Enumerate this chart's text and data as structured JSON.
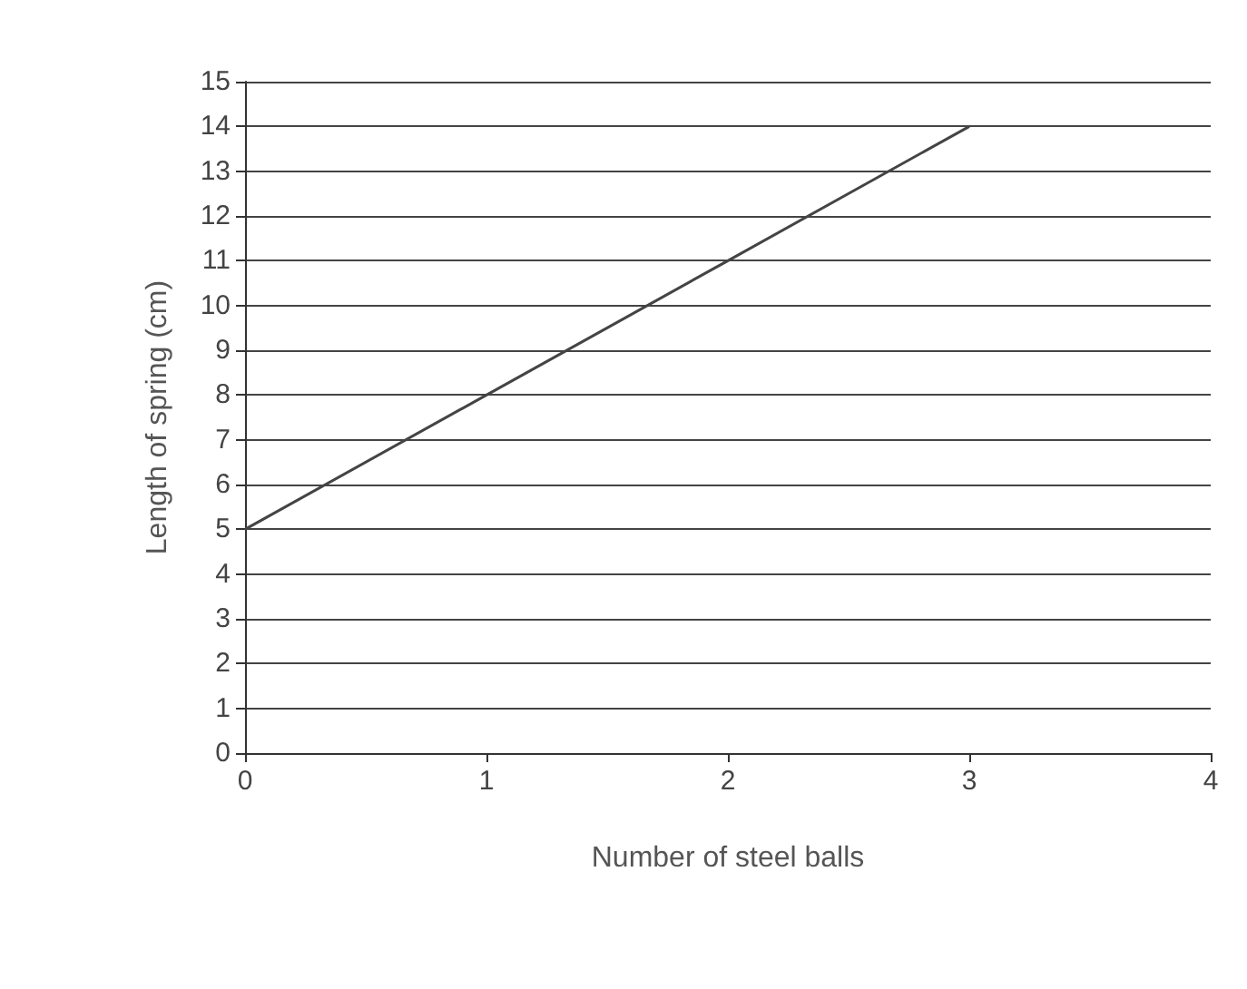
{
  "chart_data": {
    "type": "line",
    "xlabel": "Number of steel balls",
    "ylabel": "Length of spring (cm)",
    "x": [
      0,
      1,
      2,
      3
    ],
    "series": [
      {
        "color": "#444444",
        "values": [
          5,
          8,
          11,
          14
        ]
      }
    ],
    "xlim": [
      0,
      4
    ],
    "xticks": [
      0,
      1,
      2,
      3,
      4
    ],
    "ylim": [
      0,
      15
    ],
    "yticks": [
      0,
      1,
      2,
      3,
      4,
      5,
      6,
      7,
      8,
      9,
      10,
      11,
      12,
      13,
      14,
      15
    ],
    "grid": "y",
    "marker": "none",
    "line_style": "solid"
  }
}
